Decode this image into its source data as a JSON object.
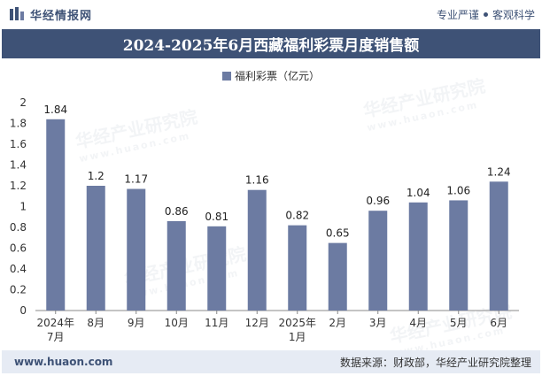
{
  "header": {
    "brand": "华经情报网",
    "slogan_left": "专业严谨",
    "slogan_right": "客观科学"
  },
  "watermark": {
    "text": "华经产业研究院",
    "url": "www.huaon.com"
  },
  "footer": {
    "website": "www.huaon.com",
    "source": "数据来源：财政部，华经产业研究院整理"
  },
  "colors": {
    "bar": "#6c7ba2",
    "header_band": "#3e5276",
    "footer_band": "#e6ebf4"
  },
  "chart_data": {
    "type": "bar",
    "title": "2024-2025年6月西藏福利彩票月度销售额",
    "series": [
      {
        "name": "福利彩票（亿元）",
        "values": [
          1.84,
          1.2,
          1.17,
          0.86,
          0.81,
          1.16,
          0.82,
          0.65,
          0.96,
          1.04,
          1.06,
          1.24
        ]
      }
    ],
    "categories": [
      [
        "2024年",
        "7月"
      ],
      [
        "8月"
      ],
      [
        "9月"
      ],
      [
        "10月"
      ],
      [
        "11月"
      ],
      [
        "12月"
      ],
      [
        "2025年",
        "1月"
      ],
      [
        "2月"
      ],
      [
        "3月"
      ],
      [
        "4月"
      ],
      [
        "5月"
      ],
      [
        "6月"
      ]
    ],
    "data_labels": [
      "1.84",
      "1.2",
      "1.17",
      "0.86",
      "0.81",
      "1.16",
      "0.82",
      "0.65",
      "0.96",
      "1.04",
      "1.06",
      "1.24"
    ],
    "y_ticks": [
      "0",
      "0.2",
      "0.4",
      "0.6",
      "0.8",
      "1",
      "1.2",
      "1.4",
      "1.6",
      "1.8",
      "2"
    ],
    "ylim": [
      0,
      2
    ],
    "grid": false,
    "legend_position": "top-center",
    "xlabel": "",
    "ylabel": ""
  }
}
